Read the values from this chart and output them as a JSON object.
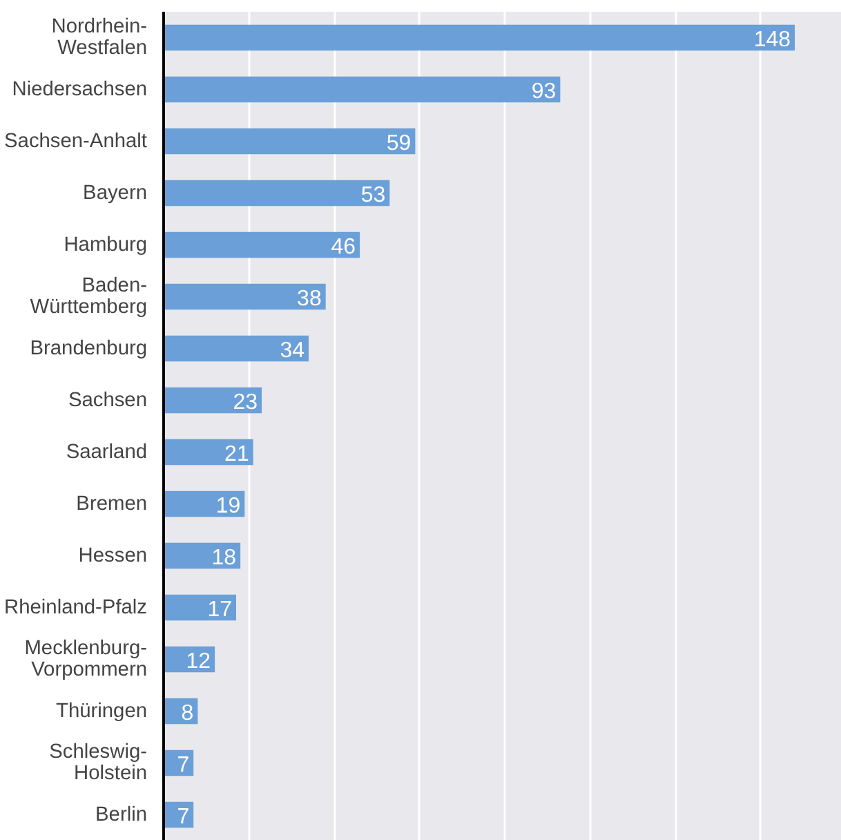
{
  "chart_data": {
    "type": "bar",
    "orientation": "horizontal",
    "categories": [
      "Nordrhein-\nWestfalen",
      "Niedersachsen",
      "Sachsen-Anhalt",
      "Bayern",
      "Hamburg",
      "Baden-\nWürttemberg",
      "Brandenburg",
      "Sachsen",
      "Saarland",
      "Bremen",
      "Hessen",
      "Rheinland-Pfalz",
      "Mecklenburg-\nVorpommern",
      "Thüringen",
      "Schleswig-\nHolstein",
      "Berlin"
    ],
    "values": [
      148,
      93,
      59,
      53,
      46,
      38,
      34,
      23,
      21,
      19,
      18,
      17,
      12,
      8,
      7,
      7
    ],
    "color": "#6b9fd8",
    "data_labels": true,
    "grid": "x",
    "tick_labels": "y",
    "xlim": [
      0,
      159
    ],
    "xticks": [
      {
        "value": 0,
        "label": null
      },
      {
        "value": 20,
        "label": null
      },
      {
        "value": 40,
        "label": null
      },
      {
        "value": 60,
        "label": null
      },
      {
        "value": 80,
        "label": null
      },
      {
        "value": 100,
        "label": null
      },
      {
        "value": 120,
        "label": null
      },
      {
        "value": 140,
        "label": null
      }
    ]
  }
}
